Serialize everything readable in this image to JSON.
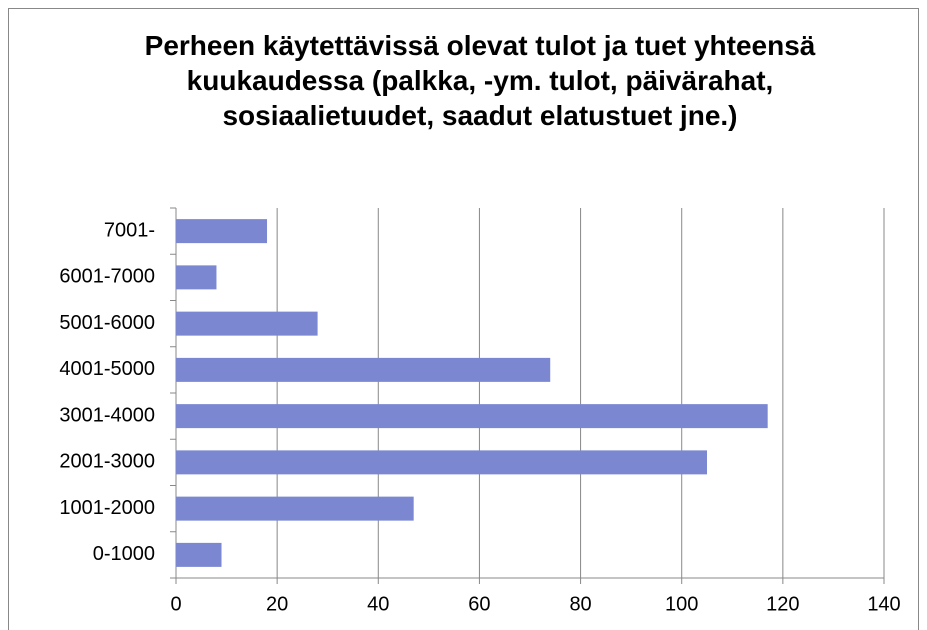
{
  "chart_data": {
    "type": "bar",
    "orientation": "horizontal",
    "title": "Perheen käytettävissä olevat tulot ja tuet yhteensä kuukaudessa (palkka, -ym. tulot, päivärahat, sosiaalietuudet, saadut elatustuet jne.)",
    "categories": [
      "0-1000",
      "1001-2000",
      "2001-3000",
      "3001-4000",
      "4001-5000",
      "5001-6000",
      "6001-7000",
      "7001-"
    ],
    "values": [
      9,
      47,
      105,
      117,
      74,
      28,
      8,
      18
    ],
    "color": "#7b88d1",
    "xlim": [
      0,
      140
    ],
    "xticks": [
      0,
      20,
      40,
      60,
      80,
      100,
      120,
      140
    ],
    "grid": true
  }
}
